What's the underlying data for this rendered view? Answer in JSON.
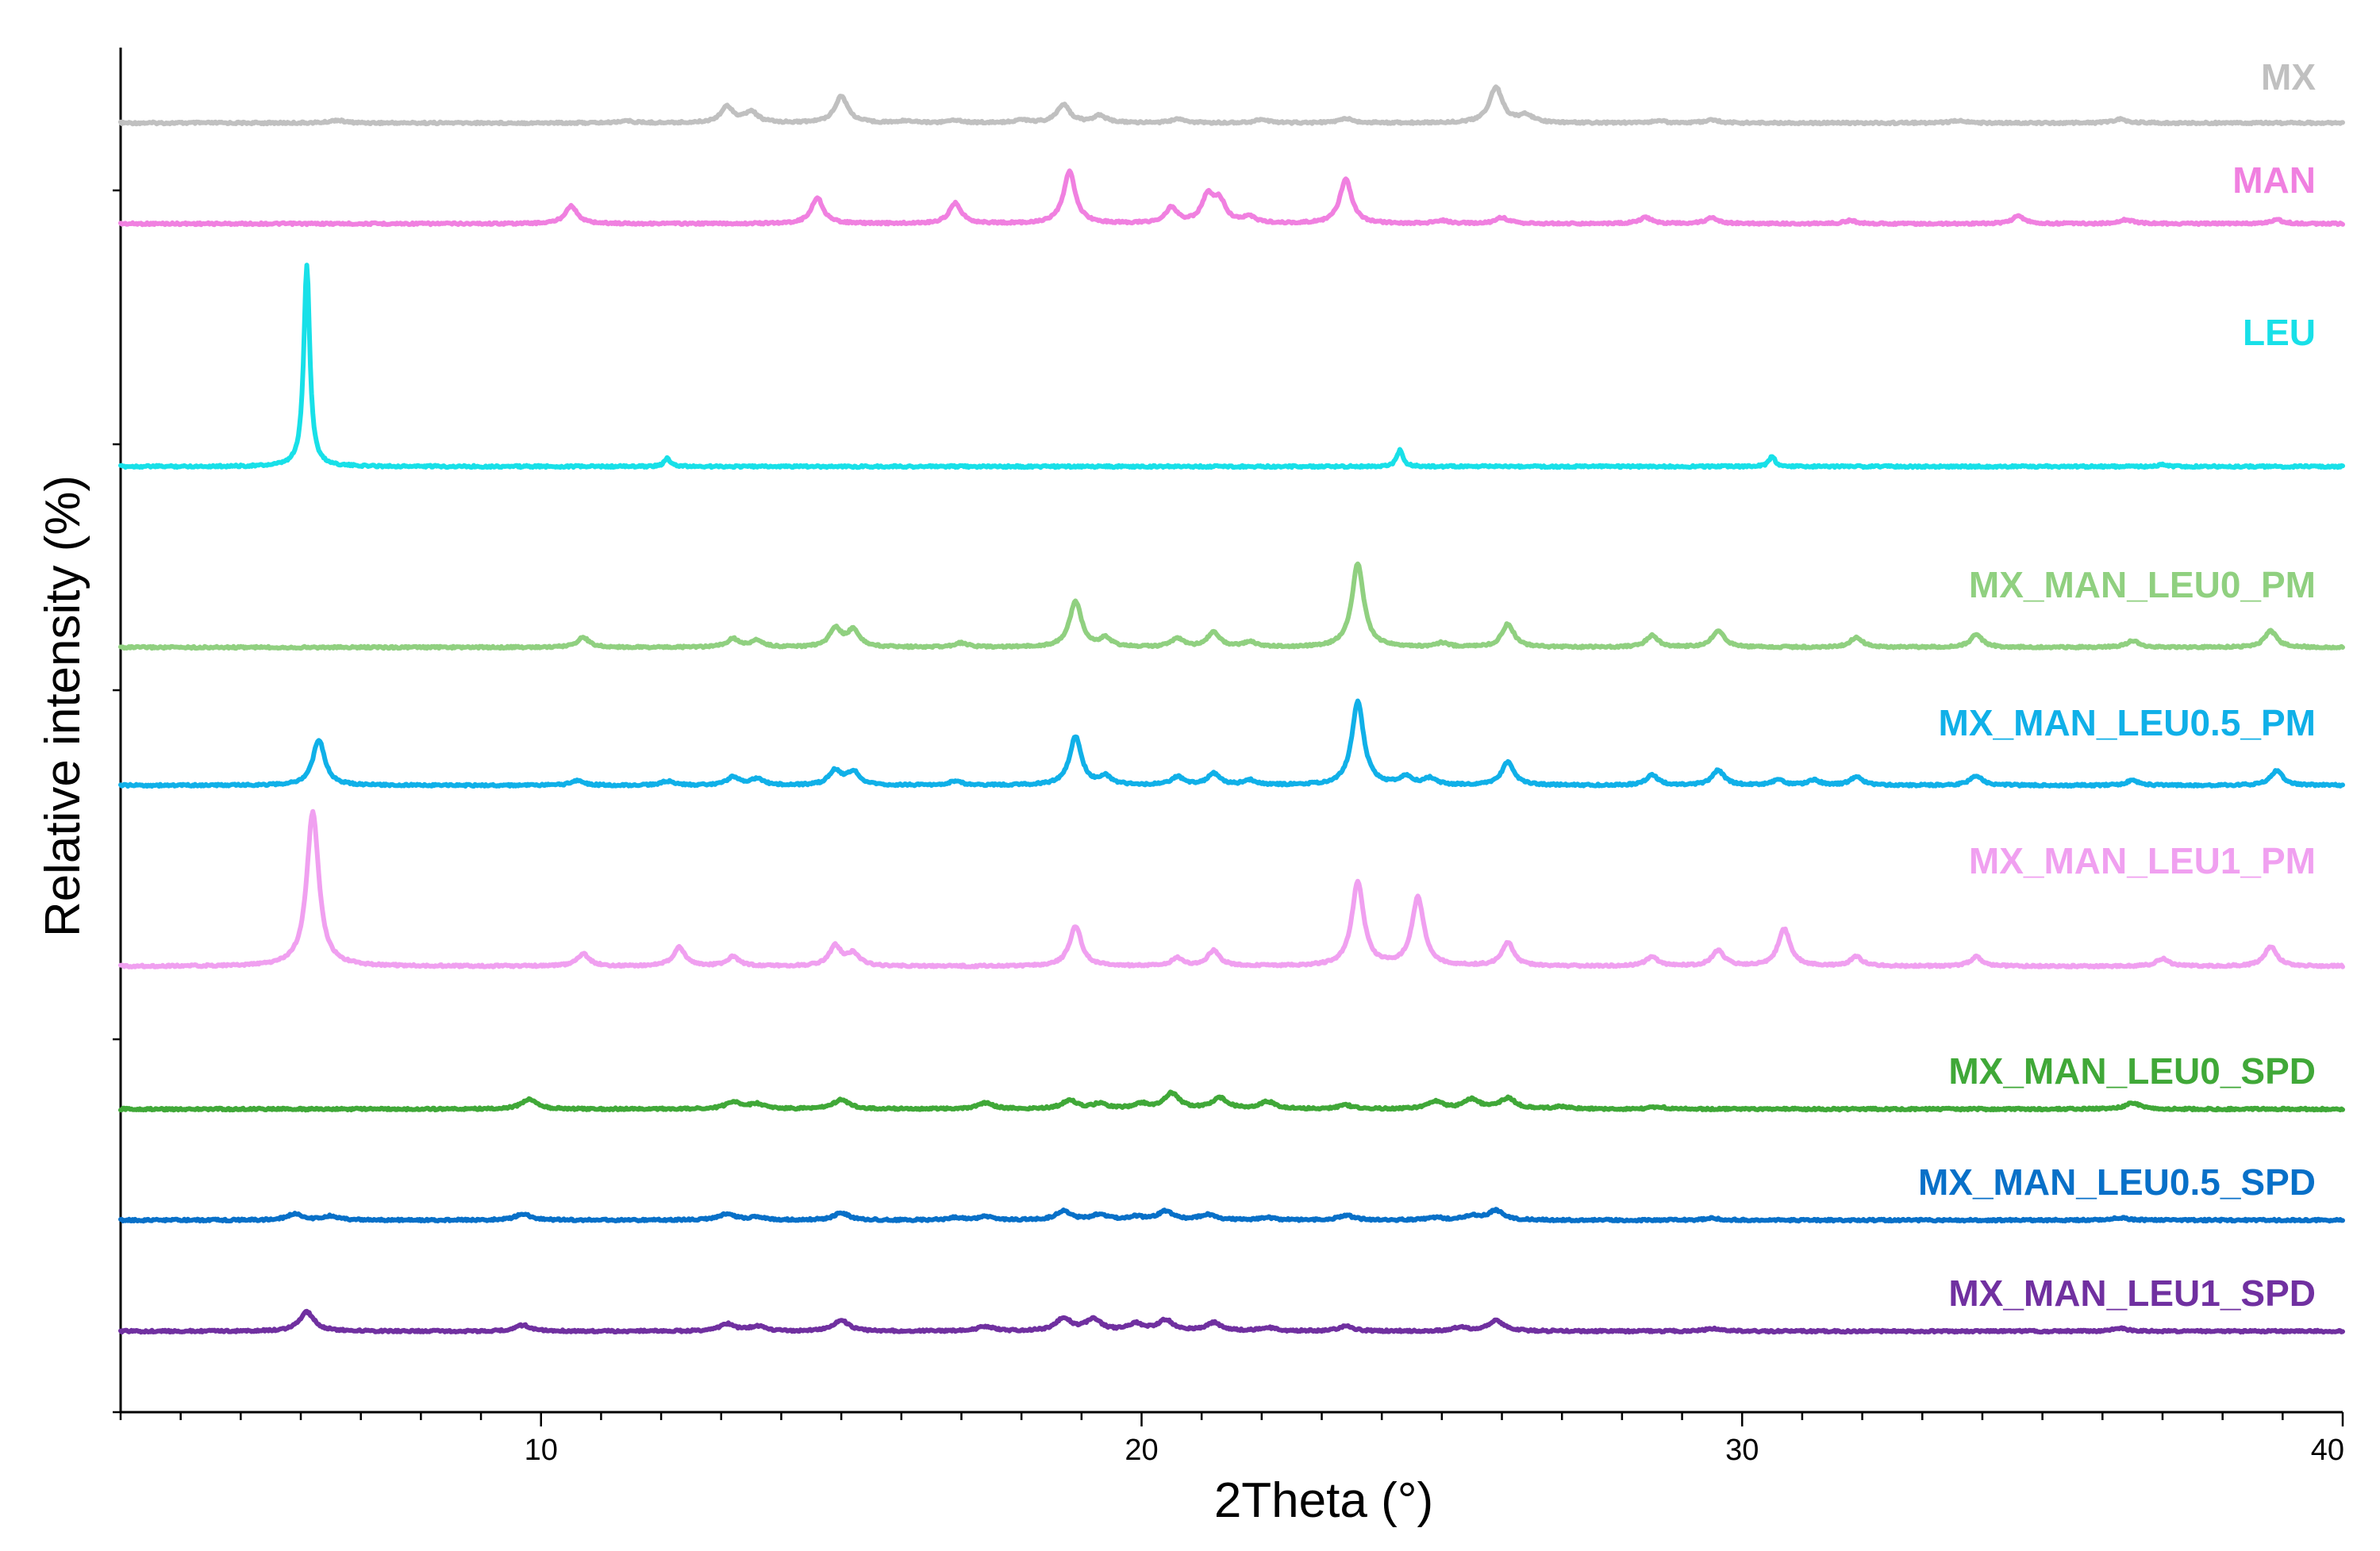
{
  "chart_data": {
    "type": "line",
    "xlabel": "2Theta (°)",
    "ylabel": "Relative intensity (%)",
    "xlim": [
      3,
      40
    ],
    "x_ticks": [
      10,
      20,
      30,
      40
    ],
    "y_ticks_labeled": false,
    "legend_placement": "inline-right",
    "grid": false,
    "series": [
      {
        "name": "MX",
        "color": "#c0c0c0",
        "height": 1.0,
        "peaks": [
          [
            6.6,
            0.08
          ],
          [
            11.4,
            0.06
          ],
          [
            13.1,
            0.45
          ],
          [
            13.5,
            0.3
          ],
          [
            15.0,
            0.75
          ],
          [
            16.1,
            0.06
          ],
          [
            16.9,
            0.08
          ],
          [
            18.0,
            0.08
          ],
          [
            18.7,
            0.5
          ],
          [
            19.3,
            0.2
          ],
          [
            20.6,
            0.1
          ],
          [
            22.0,
            0.1
          ],
          [
            23.4,
            0.12
          ],
          [
            25.9,
            1.0
          ],
          [
            26.4,
            0.22
          ],
          [
            28.6,
            0.06
          ],
          [
            29.5,
            0.08
          ],
          [
            33.6,
            0.06
          ],
          [
            36.3,
            0.1
          ]
        ]
      },
      {
        "name": "MAN",
        "color": "#f080e0",
        "height": 1.0,
        "peaks": [
          [
            10.5,
            0.35
          ],
          [
            14.6,
            0.5
          ],
          [
            16.9,
            0.4
          ],
          [
            18.8,
            1.0
          ],
          [
            20.5,
            0.3
          ],
          [
            21.1,
            0.5
          ],
          [
            21.3,
            0.4
          ],
          [
            21.8,
            0.12
          ],
          [
            23.4,
            0.85
          ],
          [
            25.0,
            0.06
          ],
          [
            26.0,
            0.12
          ],
          [
            28.4,
            0.12
          ],
          [
            29.5,
            0.12
          ],
          [
            31.8,
            0.06
          ],
          [
            34.6,
            0.15
          ],
          [
            36.4,
            0.08
          ],
          [
            38.9,
            0.08
          ]
        ]
      },
      {
        "name": "LEU",
        "color": "#18e0e8",
        "height": 1.0,
        "peaks": [
          [
            6.1,
            1.0
          ],
          [
            12.1,
            0.04
          ],
          [
            24.3,
            0.08
          ],
          [
            30.5,
            0.05
          ],
          [
            37.0,
            0.01
          ]
        ]
      },
      {
        "name": "MX_MAN_LEU0_PM",
        "color": "#90d080",
        "height": 1.0,
        "peaks": [
          [
            10.7,
            0.12
          ],
          [
            13.2,
            0.1
          ],
          [
            13.6,
            0.08
          ],
          [
            14.9,
            0.22
          ],
          [
            15.2,
            0.2
          ],
          [
            17.0,
            0.05
          ],
          [
            18.9,
            0.55
          ],
          [
            19.4,
            0.1
          ],
          [
            20.6,
            0.1
          ],
          [
            21.2,
            0.18
          ],
          [
            21.8,
            0.06
          ],
          [
            23.6,
            1.0
          ],
          [
            25.0,
            0.05
          ],
          [
            26.1,
            0.28
          ],
          [
            28.5,
            0.14
          ],
          [
            29.6,
            0.2
          ],
          [
            31.9,
            0.12
          ],
          [
            33.9,
            0.15
          ],
          [
            36.5,
            0.08
          ],
          [
            38.8,
            0.2
          ]
        ]
      },
      {
        "name": "MX_MAN_LEU0.5_PM",
        "color": "#10b0e8",
        "height": 1.0,
        "peaks": [
          [
            6.3,
            0.55
          ],
          [
            10.6,
            0.06
          ],
          [
            12.1,
            0.05
          ],
          [
            13.2,
            0.1
          ],
          [
            13.6,
            0.08
          ],
          [
            14.9,
            0.18
          ],
          [
            15.2,
            0.16
          ],
          [
            16.9,
            0.05
          ],
          [
            18.9,
            0.58
          ],
          [
            19.4,
            0.1
          ],
          [
            20.6,
            0.1
          ],
          [
            21.2,
            0.14
          ],
          [
            21.8,
            0.06
          ],
          [
            23.6,
            1.0
          ],
          [
            24.4,
            0.1
          ],
          [
            24.8,
            0.08
          ],
          [
            26.1,
            0.28
          ],
          [
            28.5,
            0.12
          ],
          [
            29.6,
            0.18
          ],
          [
            30.6,
            0.06
          ],
          [
            31.2,
            0.06
          ],
          [
            31.9,
            0.1
          ],
          [
            33.9,
            0.12
          ],
          [
            36.5,
            0.06
          ],
          [
            38.9,
            0.18
          ]
        ]
      },
      {
        "name": "MX_MAN_LEU1_PM",
        "color": "#f0a0f0",
        "height": 1.0,
        "peaks": [
          [
            6.2,
            1.0
          ],
          [
            10.7,
            0.08
          ],
          [
            12.3,
            0.12
          ],
          [
            13.2,
            0.06
          ],
          [
            14.9,
            0.13
          ],
          [
            15.2,
            0.08
          ],
          [
            18.9,
            0.26
          ],
          [
            20.6,
            0.05
          ],
          [
            21.2,
            0.1
          ],
          [
            23.6,
            0.54
          ],
          [
            24.6,
            0.44
          ],
          [
            26.1,
            0.15
          ],
          [
            28.5,
            0.06
          ],
          [
            29.6,
            0.1
          ],
          [
            30.7,
            0.24
          ],
          [
            31.9,
            0.06
          ],
          [
            33.9,
            0.06
          ],
          [
            37.0,
            0.05
          ],
          [
            38.8,
            0.13
          ]
        ]
      },
      {
        "name": "MX_MAN_LEU0_SPD",
        "color": "#40a838",
        "height": 1.0,
        "peaks": [
          [
            9.8,
            0.4
          ],
          [
            13.2,
            0.3
          ],
          [
            13.6,
            0.2
          ],
          [
            15.0,
            0.4
          ],
          [
            17.4,
            0.25
          ],
          [
            18.8,
            0.35
          ],
          [
            19.3,
            0.2
          ],
          [
            20.0,
            0.2
          ],
          [
            20.5,
            0.65
          ],
          [
            21.3,
            0.45
          ],
          [
            22.1,
            0.3
          ],
          [
            23.4,
            0.15
          ],
          [
            24.9,
            0.3
          ],
          [
            25.5,
            0.4
          ],
          [
            26.1,
            0.45
          ],
          [
            27.0,
            0.1
          ],
          [
            28.6,
            0.1
          ],
          [
            36.5,
            0.25
          ]
        ]
      },
      {
        "name": "MX_MAN_LEU0.5_SPD",
        "color": "#0870c8",
        "height": 1.0,
        "peaks": [
          [
            5.9,
            0.4
          ],
          [
            6.5,
            0.25
          ],
          [
            9.7,
            0.4
          ],
          [
            13.1,
            0.4
          ],
          [
            13.6,
            0.2
          ],
          [
            15.0,
            0.45
          ],
          [
            16.9,
            0.15
          ],
          [
            17.4,
            0.2
          ],
          [
            18.7,
            0.55
          ],
          [
            19.3,
            0.35
          ],
          [
            19.9,
            0.2
          ],
          [
            20.4,
            0.55
          ],
          [
            21.1,
            0.35
          ],
          [
            22.1,
            0.15
          ],
          [
            23.4,
            0.3
          ],
          [
            24.9,
            0.15
          ],
          [
            25.5,
            0.25
          ],
          [
            25.9,
            0.6
          ],
          [
            29.5,
            0.12
          ],
          [
            36.3,
            0.15
          ]
        ]
      },
      {
        "name": "MX_MAN_LEU1_SPD",
        "color": "#7030a0",
        "height": 1.0,
        "peaks": [
          [
            6.1,
            0.8
          ],
          [
            9.7,
            0.25
          ],
          [
            13.1,
            0.3
          ],
          [
            13.6,
            0.2
          ],
          [
            15.0,
            0.45
          ],
          [
            17.4,
            0.2
          ],
          [
            18.7,
            0.55
          ],
          [
            19.2,
            0.5
          ],
          [
            19.9,
            0.3
          ],
          [
            20.4,
            0.45
          ],
          [
            21.2,
            0.35
          ],
          [
            22.1,
            0.15
          ],
          [
            23.4,
            0.2
          ],
          [
            25.3,
            0.15
          ],
          [
            25.9,
            0.45
          ],
          [
            29.5,
            0.1
          ],
          [
            36.3,
            0.12
          ]
        ]
      }
    ]
  }
}
